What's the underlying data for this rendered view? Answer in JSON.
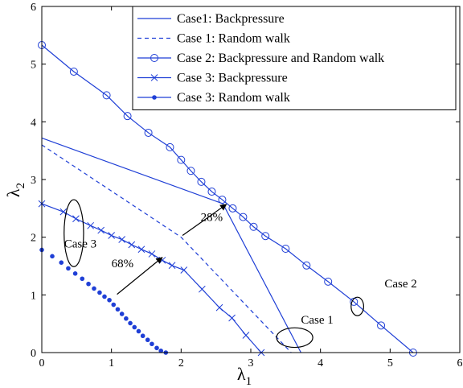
{
  "chart_data": {
    "type": "line",
    "title": "",
    "xlabel": "λ",
    "xlabel_sub": "1",
    "ylabel": "λ",
    "ylabel_sub": "2",
    "xlim": [
      0,
      6
    ],
    "ylim": [
      0,
      6
    ],
    "xticks": [
      0,
      1,
      2,
      3,
      4,
      5,
      6
    ],
    "yticks": [
      0,
      1,
      2,
      3,
      4,
      5,
      6
    ],
    "grid": false,
    "legend_position": "top-right",
    "line_color": "#1f3fd6",
    "series": [
      {
        "name": "Case1: Backpressure",
        "style": "solid",
        "marker": "none",
        "x": [
          0,
          2.6,
          3.72
        ],
        "y": [
          3.72,
          2.58,
          0
        ]
      },
      {
        "name": "Case 1: Random walk",
        "style": "dashed",
        "marker": "none",
        "x": [
          0,
          2.0,
          3.58
        ],
        "y": [
          3.6,
          2.0,
          0
        ]
      },
      {
        "name": "Case 2: Backpressure and Random walk",
        "style": "solid",
        "marker": "circle",
        "x": [
          0,
          0.46,
          0.93,
          1.23,
          1.53,
          1.84,
          2.0,
          2.14,
          2.29,
          2.44,
          2.59,
          2.74,
          2.89,
          3.04,
          3.21,
          3.5,
          3.8,
          4.11,
          4.48,
          4.87,
          5.33
        ],
        "y": [
          5.33,
          4.87,
          4.46,
          4.1,
          3.81,
          3.56,
          3.34,
          3.15,
          2.96,
          2.79,
          2.65,
          2.5,
          2.35,
          2.18,
          2.02,
          1.8,
          1.51,
          1.23,
          0.88,
          0.47,
          0
        ]
      },
      {
        "name": "Case 3: Backpressure",
        "style": "solid",
        "marker": "x",
        "x": [
          0,
          0.31,
          0.49,
          0.7,
          0.85,
          1.0,
          1.15,
          1.29,
          1.43,
          1.58,
          1.73,
          1.87,
          2.04,
          2.3,
          2.55,
          2.73,
          2.93,
          3.15
        ],
        "y": [
          2.58,
          2.44,
          2.32,
          2.2,
          2.12,
          2.03,
          1.96,
          1.87,
          1.79,
          1.71,
          1.6,
          1.51,
          1.43,
          1.1,
          0.78,
          0.6,
          0.3,
          0
        ]
      },
      {
        "name": "Case 3: Random walk",
        "style": "solid",
        "marker": "dot",
        "x": [
          0,
          0.15,
          0.28,
          0.38,
          0.48,
          0.58,
          0.67,
          0.75,
          0.83,
          0.9,
          0.97,
          1.03,
          1.09,
          1.15,
          1.21,
          1.27,
          1.33,
          1.39,
          1.45,
          1.52,
          1.58,
          1.65,
          1.71,
          1.78
        ],
        "y": [
          1.78,
          1.67,
          1.56,
          1.46,
          1.37,
          1.28,
          1.19,
          1.11,
          1.04,
          0.97,
          0.91,
          0.83,
          0.75,
          0.67,
          0.59,
          0.51,
          0.44,
          0.37,
          0.29,
          0.22,
          0.15,
          0.08,
          0.03,
          0
        ]
      }
    ],
    "annotations": [
      {
        "text": "28%",
        "x": 2.28,
        "y": 2.28
      },
      {
        "text": "68%",
        "x": 1.0,
        "y": 1.48
      },
      {
        "text": "Case 3",
        "x": 0.32,
        "y": 1.82
      },
      {
        "text": "Case 1",
        "x": 3.72,
        "y": 0.5
      },
      {
        "text": "Case 2",
        "x": 4.92,
        "y": 1.13
      }
    ],
    "arrows": [
      {
        "from": [
          2.02,
          2.03
        ],
        "to": [
          2.65,
          2.57
        ]
      },
      {
        "from": [
          1.08,
          1.01
        ],
        "to": [
          1.73,
          1.65
        ]
      }
    ],
    "ellipses": [
      {
        "cx": 0.46,
        "cy": 2.07,
        "rx": 0.14,
        "ry": 0.58
      },
      {
        "cx": 3.63,
        "cy": 0.26,
        "rx": 0.26,
        "ry": 0.17
      },
      {
        "cx": 4.53,
        "cy": 0.8,
        "rx": 0.09,
        "ry": 0.16
      }
    ]
  }
}
